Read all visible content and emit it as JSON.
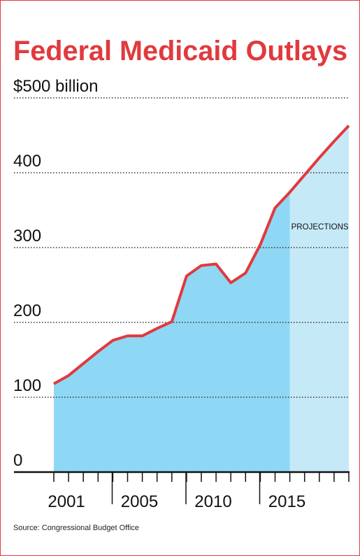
{
  "chart_data": {
    "type": "area",
    "title": "Federal Medicaid Outlays",
    "source": "Source: Congressional Budget Office",
    "annotation": "PROJECTIONS",
    "projection_start": 2016,
    "x": [
      2000,
      2001,
      2002,
      2003,
      2004,
      2005,
      2006,
      2007,
      2008,
      2009,
      2010,
      2011,
      2012,
      2013,
      2014,
      2015,
      2016,
      2017,
      2018,
      2019,
      2020
    ],
    "values": [
      118,
      129,
      145,
      161,
      176,
      182,
      182,
      192,
      201,
      262,
      276,
      278,
      253,
      266,
      304,
      353,
      374,
      397,
      420,
      442,
      463
    ],
    "color": "#e03a3e",
    "area_color": "#8fd8f5",
    "projection_color": "#c6e9f8",
    "xlim": [
      2000,
      2020
    ],
    "xticks": [
      2001,
      2005,
      2010,
      2015
    ],
    "ylim": [
      0,
      500
    ],
    "yticks": [
      0,
      100,
      200,
      300,
      400,
      {
        "value": 500,
        "label": "$500 billion"
      }
    ],
    "grid": true
  }
}
